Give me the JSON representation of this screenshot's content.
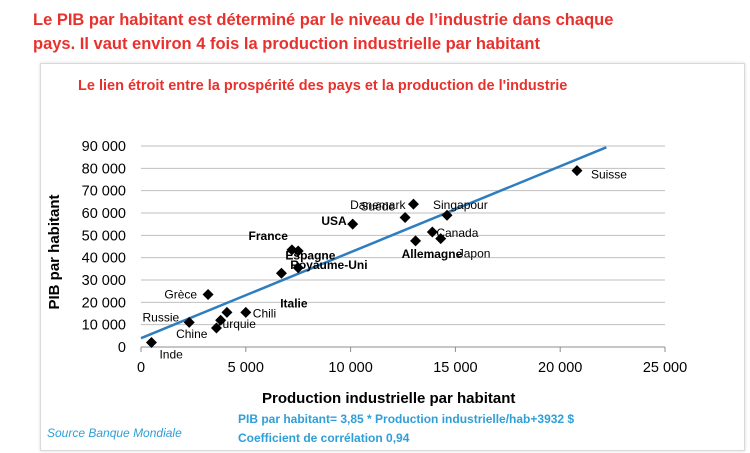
{
  "headline": {
    "line1": "Le PIB par habitant est déterminé par le niveau de l’industrie dans chaque",
    "line2": "pays. Il vaut environ 4 fois la production industrielle par habitant"
  },
  "colors": {
    "headline": "#e8312d",
    "trendline": "#2e7ebf",
    "marker": "#000000",
    "annotation": "#2e9fd8"
  },
  "chart_data": {
    "type": "scatter",
    "title": "Le lien étroit entre la prospérité des pays et la production de l'industrie",
    "xlabel": "Production industrielle par habitant",
    "ylabel": "PIB par habitant",
    "xlim": [
      0,
      25000
    ],
    "ylim": [
      0,
      90000
    ],
    "x_ticks": [
      "0",
      "5 000",
      "10 000",
      "15 000",
      "20 000",
      "25 000"
    ],
    "y_ticks": [
      "0",
      "10 000",
      "20 000",
      "30 000",
      "40 000",
      "50 000",
      "60 000",
      "70 000",
      "80 000",
      "90 000"
    ],
    "grid": "horizontal",
    "legend": "none",
    "points": [
      {
        "label": "Inde",
        "x": 500,
        "y": 2000,
        "bold": false
      },
      {
        "label": "Chine",
        "x": 3600,
        "y": 8500,
        "bold": false
      },
      {
        "label": "Russie",
        "x": 2300,
        "y": 11000,
        "bold": false
      },
      {
        "label": "Turquie",
        "x": 3800,
        "y": 12000,
        "bold": false
      },
      {
        "label": "",
        "x": 4100,
        "y": 15500,
        "bold": false
      },
      {
        "label": "Chili",
        "x": 5000,
        "y": 15500,
        "bold": false
      },
      {
        "label": "Grèce",
        "x": 3200,
        "y": 23500,
        "bold": false
      },
      {
        "label": "Espagne",
        "x": 6700,
        "y": 33000,
        "bold": true
      },
      {
        "label": "France",
        "x": 7200,
        "y": 43500,
        "bold": true
      },
      {
        "label": "Royaume-Uni",
        "x": 7500,
        "y": 43000,
        "bold": true
      },
      {
        "label": "Italie",
        "x": 7500,
        "y": 35500,
        "bold": true
      },
      {
        "label": "USA",
        "x": 10100,
        "y": 55000,
        "bold": true
      },
      {
        "label": "Suède",
        "x": 12600,
        "y": 58000,
        "bold": false
      },
      {
        "label": "Danemark",
        "x": 13000,
        "y": 64000,
        "bold": false
      },
      {
        "label": "Allemagne",
        "x": 13100,
        "y": 47500,
        "bold": true
      },
      {
        "label": "Canada",
        "x": 13900,
        "y": 51500,
        "bold": false
      },
      {
        "label": "Japon",
        "x": 14300,
        "y": 48500,
        "bold": false
      },
      {
        "label": "Singapour",
        "x": 14600,
        "y": 59000,
        "bold": false
      },
      {
        "label": "Suisse",
        "x": 20800,
        "y": 79000,
        "bold": false
      }
    ],
    "trendline": {
      "slope": 3.85,
      "intercept": 3932,
      "x_range": [
        0,
        22200
      ]
    },
    "annotations": {
      "equation": "PIB par habitant= 3,85 * Production industrielle/hab+3932 $",
      "correlation": "Coefficient de corrélation 0,94"
    },
    "source": "Source Banque Mondiale"
  }
}
